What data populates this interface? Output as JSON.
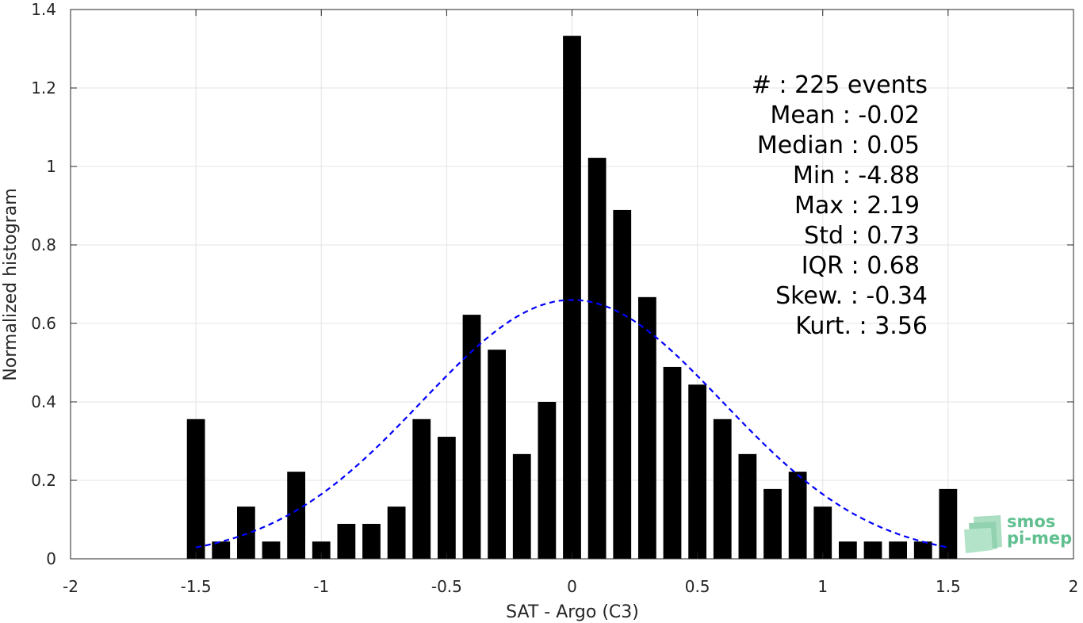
{
  "chart_data": {
    "type": "bar",
    "xlabel": "SAT - Argo (C3)",
    "ylabel": "Normalized histogram",
    "xlim": [
      -2,
      2
    ],
    "ylim": [
      0,
      1.4
    ],
    "xticks": [
      -2,
      -1.5,
      -1,
      -0.5,
      0,
      0.5,
      1,
      1.5,
      2
    ],
    "xtick_labels": [
      "-2",
      "-1.5",
      "-1",
      "-0.5",
      "0",
      "0.5",
      "1",
      "1.5",
      "2"
    ],
    "yticks": [
      0,
      0.2,
      0.4,
      0.6,
      0.8,
      1,
      1.2,
      1.4
    ],
    "ytick_labels": [
      "0",
      "0.2",
      "0.4",
      "0.6",
      "0.8",
      "1",
      "1.2",
      "1.4"
    ],
    "grid": true,
    "bar_color": "#000000",
    "bin_width": 0.1,
    "bin_centers": [
      -1.5,
      -1.4,
      -1.3,
      -1.2,
      -1.1,
      -1.0,
      -0.9,
      -0.8,
      -0.7,
      -0.6,
      -0.5,
      -0.4,
      -0.3,
      -0.2,
      -0.1,
      0.0,
      0.1,
      0.2,
      0.3,
      0.4,
      0.5,
      0.6,
      0.7,
      0.8,
      0.9,
      1.0,
      1.1,
      1.2,
      1.3,
      1.4,
      1.5
    ],
    "values": [
      0.356,
      0.044,
      0.133,
      0.044,
      0.222,
      0.044,
      0.089,
      0.089,
      0.133,
      0.356,
      0.311,
      0.622,
      0.533,
      0.267,
      0.4,
      1.333,
      1.022,
      0.889,
      0.667,
      0.489,
      0.444,
      0.356,
      0.267,
      0.178,
      0.222,
      0.133,
      0.044,
      0.044,
      0.044,
      0.044,
      0.178
    ],
    "fit_curve": {
      "type": "gaussian",
      "mean": 0.0,
      "peak": 0.66,
      "sigma": 0.6,
      "x_range": [
        -1.5,
        1.5
      ],
      "color": "#0000ff",
      "style": "dashed"
    },
    "stats": [
      {
        "label": "#  : 225 events"
      },
      {
        "label": "Mean : -0.02"
      },
      {
        "label": "Median : 0.05"
      },
      {
        "label": "Min : -4.88"
      },
      {
        "label": "Max : 2.19"
      },
      {
        "label": "Std : 0.73"
      },
      {
        "label": "IQR : 0.68"
      },
      {
        "label": "Skew. : -0.34"
      },
      {
        "label": "Kurt. : 3.56"
      }
    ]
  },
  "logo": {
    "line1": "smos",
    "line2": "pi-mep",
    "color": "#5fbf8f"
  }
}
